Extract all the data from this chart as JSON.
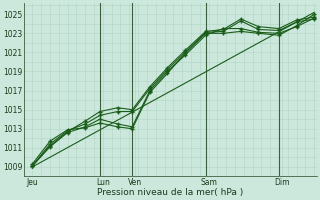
{
  "background_color": "#cce8dc",
  "grid_color_minor": "#b0d4c4",
  "grid_color_major": "#90b8a8",
  "line_color": "#1a5c1a",
  "vline_color": "#3a6040",
  "title": "Pression niveau de la mer( hPa )",
  "ylabel_ticks": [
    1009,
    1011,
    1013,
    1015,
    1017,
    1019,
    1021,
    1023,
    1025
  ],
  "xlim": [
    0,
    100
  ],
  "ylim": [
    1008.2,
    1026.2
  ],
  "day_labels": [
    "Jeu",
    "Lun",
    "Ven",
    "Sam",
    "Dim"
  ],
  "day_positions": [
    3,
    27,
    38,
    63,
    88
  ],
  "vline_positions": [
    26,
    37,
    62,
    87
  ],
  "line1": [
    [
      3,
      1009.3
    ],
    [
      9,
      1011.7
    ],
    [
      15,
      1012.9
    ],
    [
      21,
      1013.1
    ],
    [
      26,
      1013.6
    ],
    [
      32,
      1013.2
    ],
    [
      37,
      1013.0
    ],
    [
      43,
      1016.8
    ],
    [
      49,
      1018.8
    ],
    [
      55,
      1020.9
    ],
    [
      62,
      1023.0
    ],
    [
      68,
      1023.0
    ],
    [
      74,
      1023.2
    ],
    [
      80,
      1023.0
    ],
    [
      87,
      1022.8
    ],
    [
      93,
      1023.8
    ],
    [
      99,
      1025.0
    ]
  ],
  "line2": [
    [
      3,
      1009.1
    ],
    [
      9,
      1011.4
    ],
    [
      15,
      1012.8
    ],
    [
      21,
      1013.5
    ],
    [
      26,
      1014.4
    ],
    [
      32,
      1014.8
    ],
    [
      37,
      1014.8
    ],
    [
      43,
      1017.2
    ],
    [
      49,
      1019.2
    ],
    [
      55,
      1021.0
    ],
    [
      62,
      1023.1
    ],
    [
      68,
      1023.2
    ],
    [
      74,
      1024.3
    ],
    [
      80,
      1023.4
    ],
    [
      87,
      1023.3
    ],
    [
      93,
      1024.2
    ],
    [
      99,
      1024.5
    ]
  ],
  "line3": [
    [
      3,
      1009.1
    ],
    [
      9,
      1011.2
    ],
    [
      15,
      1012.7
    ],
    [
      21,
      1013.8
    ],
    [
      26,
      1014.8
    ],
    [
      32,
      1015.2
    ],
    [
      37,
      1015.0
    ],
    [
      43,
      1017.4
    ],
    [
      49,
      1019.4
    ],
    [
      55,
      1021.2
    ],
    [
      62,
      1023.2
    ],
    [
      68,
      1023.4
    ],
    [
      74,
      1024.5
    ],
    [
      80,
      1023.7
    ],
    [
      87,
      1023.5
    ],
    [
      93,
      1024.4
    ],
    [
      99,
      1024.7
    ]
  ],
  "line4": [
    [
      3,
      1009.0
    ],
    [
      99,
      1025.2
    ]
  ],
  "line5": [
    [
      3,
      1009.1
    ],
    [
      9,
      1011.1
    ],
    [
      15,
      1012.6
    ],
    [
      21,
      1013.2
    ],
    [
      26,
      1014.0
    ],
    [
      32,
      1013.5
    ],
    [
      37,
      1013.2
    ],
    [
      43,
      1017.0
    ],
    [
      49,
      1019.0
    ],
    [
      55,
      1020.7
    ],
    [
      62,
      1022.8
    ],
    [
      68,
      1023.5
    ],
    [
      74,
      1023.5
    ],
    [
      80,
      1023.1
    ],
    [
      87,
      1023.0
    ],
    [
      93,
      1023.7
    ],
    [
      99,
      1024.6
    ]
  ]
}
